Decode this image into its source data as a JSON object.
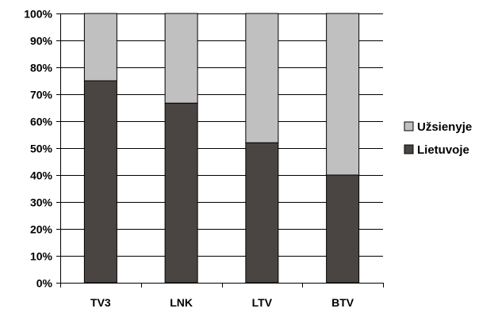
{
  "chart_data": {
    "type": "bar",
    "stacked": true,
    "categories": [
      "TV3",
      "LNK",
      "LTV",
      "BTV"
    ],
    "series": [
      {
        "name": "Lietuvoje",
        "color": "#4a4542",
        "values": [
          75,
          66.7,
          52,
          40
        ]
      },
      {
        "name": "Užsienyje",
        "color": "#c0c0c0",
        "values": [
          25,
          33.3,
          48,
          60
        ]
      }
    ],
    "yticks": [
      "0%",
      "10%",
      "20%",
      "30%",
      "40%",
      "50%",
      "60%",
      "70%",
      "80%",
      "90%",
      "100%"
    ],
    "ylim": [
      0,
      100
    ],
    "grid": true,
    "legend": {
      "position": "right",
      "order": [
        "Užsienyje",
        "Lietuvoje"
      ]
    },
    "title": "",
    "xlabel": "",
    "ylabel": ""
  }
}
